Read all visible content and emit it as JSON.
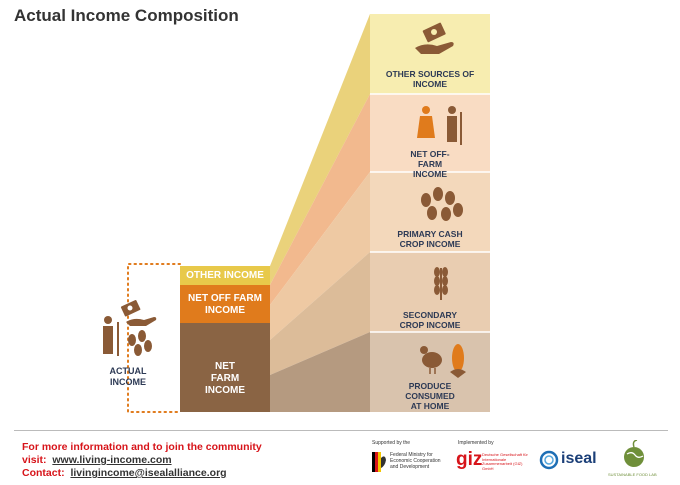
{
  "title": "Actual Income Composition",
  "stack": {
    "other_income": "OTHER INCOME",
    "net_off_farm": "NET OFF FARM INCOME",
    "net_farm": "NET FARM INCOME"
  },
  "actual_income": "ACTUAL INCOME",
  "column": {
    "other_sources": "OTHER SOURCES OF INCOME",
    "net_off_farm": "NET OFF-FARM INCOME",
    "primary_cash": "PRIMARY CASH CROP INCOME",
    "secondary_crop": "SECONDARY CROP INCOME",
    "produce_home": "PRODUCE CONSUMED AT HOME"
  },
  "footer": {
    "info": "For more information and to join the community",
    "visit_label": "visit:",
    "visit_url": "www.living-income.com",
    "contact_label": "Contact:",
    "contact_email": "livingincome@isealalliance.org"
  },
  "logos": {
    "supported_by": "Supported by the",
    "bmz": "Federal Ministry for Economic Cooperation and Development",
    "implemented_by": "Implemented by",
    "giz": "giz",
    "giz_sub": "Deutsche Gesellschaft für Internationale Zusammenarbeit (GIZ) GmbH",
    "iseal": "iseal",
    "sfl": "SUSTAINABLE FOOD LAB"
  },
  "colors": {
    "yellow": "#e8c94a",
    "orange": "#e07b1c",
    "brown": "#8a6444",
    "navy": "#2d3a55",
    "red": "#d7141a",
    "icon_brown": "#8a5a36"
  }
}
